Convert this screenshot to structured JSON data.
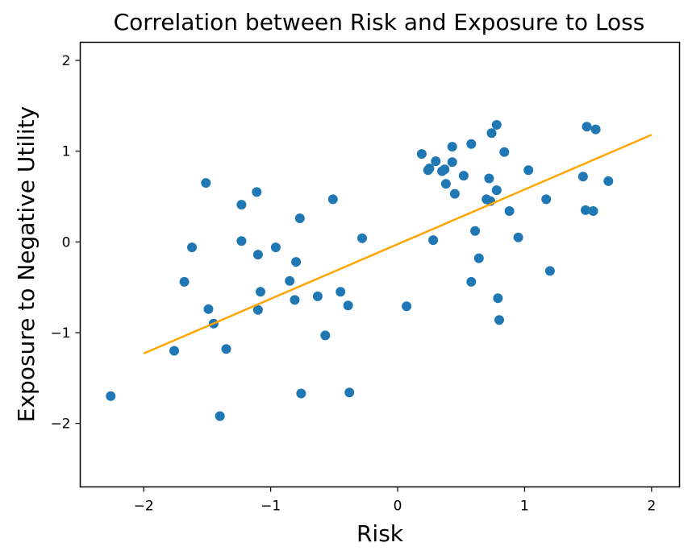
{
  "chart_data": {
    "type": "scatter",
    "title": "Correlation between Risk and Exposure to Loss",
    "xlabel": "Risk",
    "ylabel": "Exposure to Negative Utility",
    "xlim": [
      -2.5,
      2.22
    ],
    "ylim": [
      -2.7,
      2.2
    ],
    "xticks": [
      -2,
      -1,
      0,
      1,
      2
    ],
    "yticks": [
      -2,
      -1,
      0,
      1,
      2
    ],
    "xtick_labels": [
      "−2",
      "−1",
      "0",
      "1",
      "2"
    ],
    "ytick_labels": [
      "−2",
      "−1",
      "0",
      "1",
      "2"
    ],
    "grid": false,
    "series": [
      {
        "type": "scatter",
        "color": "#1f77b4",
        "points": [
          [
            -2.26,
            -1.7
          ],
          [
            -1.76,
            -1.2
          ],
          [
            -1.68,
            -0.44
          ],
          [
            -1.62,
            -0.06
          ],
          [
            -1.51,
            0.65
          ],
          [
            -1.49,
            -0.74
          ],
          [
            -1.45,
            -0.9
          ],
          [
            -1.4,
            -1.92
          ],
          [
            -1.35,
            -1.18
          ],
          [
            -1.23,
            0.41
          ],
          [
            -1.23,
            0.01
          ],
          [
            -1.11,
            0.55
          ],
          [
            -1.1,
            -0.75
          ],
          [
            -1.1,
            -0.14
          ],
          [
            -1.08,
            -0.55
          ],
          [
            -0.96,
            -0.06
          ],
          [
            -0.85,
            -0.43
          ],
          [
            -0.81,
            -0.64
          ],
          [
            -0.8,
            -0.22
          ],
          [
            -0.77,
            0.26
          ],
          [
            -0.76,
            -1.67
          ],
          [
            -0.63,
            -0.6
          ],
          [
            -0.57,
            -1.03
          ],
          [
            -0.51,
            0.47
          ],
          [
            -0.45,
            -0.55
          ],
          [
            -0.39,
            -0.7
          ],
          [
            -0.38,
            -1.66
          ],
          [
            -0.28,
            0.04
          ],
          [
            0.07,
            -0.71
          ],
          [
            0.19,
            0.97
          ],
          [
            0.24,
            0.79
          ],
          [
            0.25,
            0.81
          ],
          [
            0.28,
            0.02
          ],
          [
            0.3,
            0.89
          ],
          [
            0.35,
            0.78
          ],
          [
            0.37,
            0.8
          ],
          [
            0.38,
            0.64
          ],
          [
            0.43,
            1.05
          ],
          [
            0.43,
            0.88
          ],
          [
            0.45,
            0.53
          ],
          [
            0.52,
            0.73
          ],
          [
            0.58,
            1.08
          ],
          [
            0.58,
            -0.44
          ],
          [
            0.61,
            0.12
          ],
          [
            0.64,
            -0.18
          ],
          [
            0.7,
            0.47
          ],
          [
            0.72,
            0.7
          ],
          [
            0.73,
            0.45
          ],
          [
            0.74,
            1.2
          ],
          [
            0.78,
            1.29
          ],
          [
            0.78,
            0.57
          ],
          [
            0.79,
            -0.62
          ],
          [
            0.8,
            -0.86
          ],
          [
            0.84,
            0.99
          ],
          [
            0.88,
            0.34
          ],
          [
            0.95,
            0.05
          ],
          [
            1.03,
            0.79
          ],
          [
            1.17,
            0.47
          ],
          [
            1.2,
            -0.32
          ],
          [
            1.46,
            0.72
          ],
          [
            1.48,
            0.35
          ],
          [
            1.49,
            1.27
          ],
          [
            1.54,
            0.34
          ],
          [
            1.56,
            1.24
          ],
          [
            1.66,
            0.67
          ]
        ]
      },
      {
        "type": "line",
        "color": "#ffa500",
        "points": [
          [
            -2.0,
            -1.23
          ],
          [
            2.0,
            1.18
          ]
        ]
      }
    ]
  }
}
